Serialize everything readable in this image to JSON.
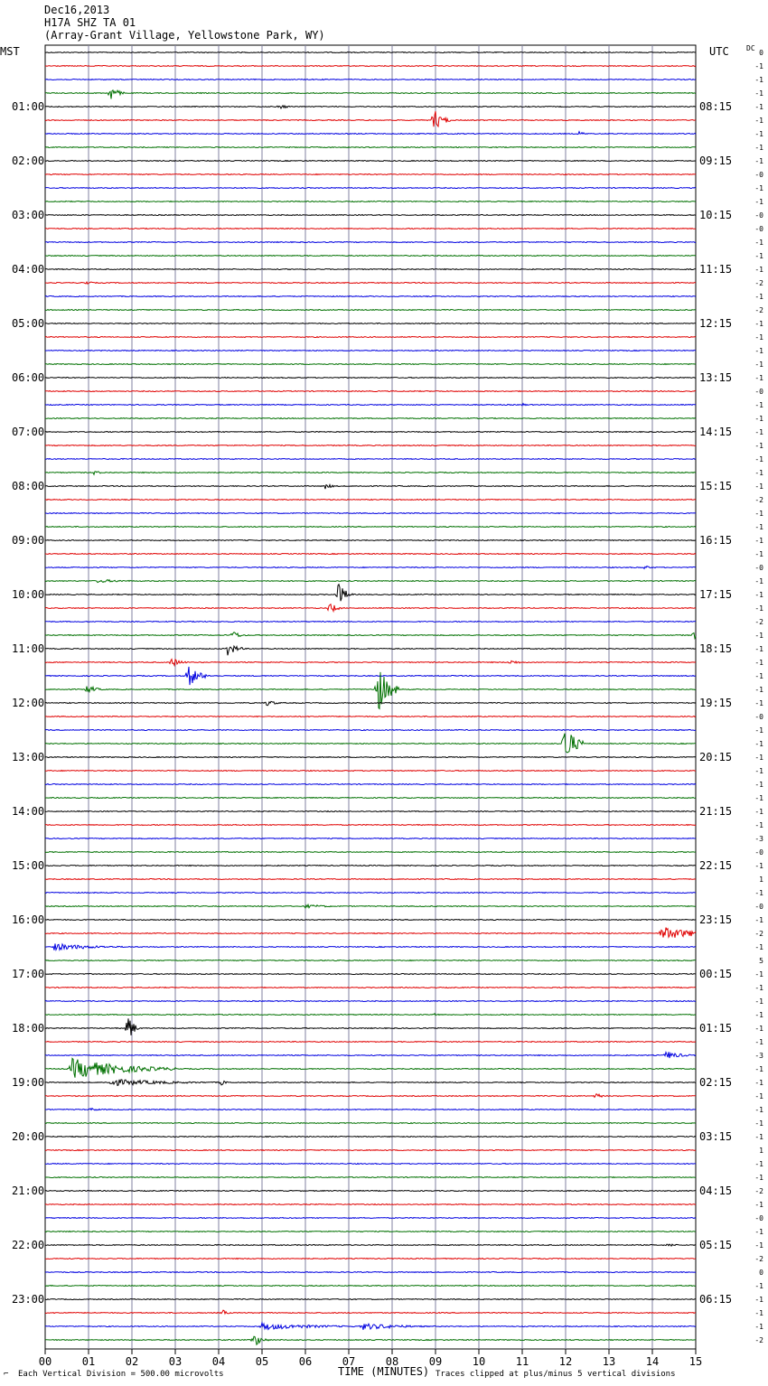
{
  "header": {
    "date": "Dec16,2013",
    "station": "H17A SHZ TA 01",
    "location": "(Array-Grant Village, Yellowstone Park, WY)"
  },
  "left_axis_label": "MST",
  "right_axis_label": "UTC",
  "dc_label": "DC",
  "footer": {
    "scale_mark": "⌐",
    "scale_note": "Each Vertical Division =  500.00 microvolts",
    "xlabel": "TIME (MINUTES)",
    "clip_note": "Traces clipped at plus/minus 5 vertical divisions"
  },
  "colors": {
    "trace_cycle": [
      "#000000",
      "#e00000",
      "#0000e0",
      "#007000"
    ],
    "grid": "#8080a0"
  },
  "chart_data": {
    "type": "line",
    "description_type": "helicorder",
    "x_range": [
      0,
      15
    ],
    "x_ticks": [
      "00",
      "01",
      "02",
      "03",
      "04",
      "05",
      "06",
      "07",
      "08",
      "09",
      "10",
      "11",
      "12",
      "13",
      "14",
      "15"
    ],
    "trace_minutes_each": 15,
    "num_traces": 96,
    "left_hour_labels": [
      "01:00",
      "02:00",
      "03:00",
      "04:00",
      "05:00",
      "06:00",
      "07:00",
      "08:00",
      "09:00",
      "10:00",
      "11:00",
      "12:00",
      "13:00",
      "14:00",
      "15:00",
      "16:00",
      "17:00",
      "18:00",
      "19:00",
      "20:00",
      "21:00",
      "22:00",
      "23:00"
    ],
    "right_hour_labels": [
      "08:15",
      "09:15",
      "10:15",
      "11:15",
      "12:15",
      "13:15",
      "14:15",
      "15:15",
      "16:15",
      "17:15",
      "18:15",
      "19:15",
      "20:15",
      "21:15",
      "22:15",
      "23:15",
      "00:15",
      "01:15",
      "02:15",
      "03:15",
      "04:15",
      "05:15",
      "06:15"
    ],
    "dc_offsets": [
      "0",
      "-1",
      "-1",
      "-1",
      "-1",
      "-1",
      "-1",
      "-1",
      "-1",
      "-0",
      "-1",
      "-1",
      "-0",
      "-0",
      "-1",
      "-1",
      "-1",
      "-2",
      "-1",
      "-2",
      "-1",
      "-1",
      "-1",
      "-1",
      "-1",
      "-0",
      "-1",
      "-1",
      "-1",
      "-1",
      "-1",
      "-1",
      "-1",
      "-2",
      "-1",
      "-1",
      "-1",
      "-1",
      "-0",
      "-1",
      "-1",
      "-1",
      "-2",
      "-1",
      "-1",
      "-1",
      "-1",
      "-1",
      "-1",
      "-0",
      "-1",
      "-1",
      "-1",
      "-1",
      "-1",
      "-1",
      "-1",
      "-1",
      "-3",
      "-0",
      "-1",
      "1",
      "-1",
      "-0",
      "-1",
      "-2",
      "-1",
      "5",
      "-1",
      "-1",
      "-1",
      "-1",
      "-1",
      "-1",
      "-3",
      "-1",
      "-1",
      "-1",
      "-1",
      "-1",
      "-1",
      "1",
      "-1",
      "-1",
      "-2",
      "-1",
      "-0",
      "-1",
      "-1",
      "-2",
      "0",
      "-1",
      "-1",
      "-1",
      "-1",
      "-2"
    ],
    "events": [
      {
        "trace": 3,
        "minute": 1.5,
        "amp": 9,
        "dur": 0.35
      },
      {
        "trace": 4,
        "minute": 5.4,
        "amp": 3,
        "dur": 0.4
      },
      {
        "trace": 5,
        "minute": 8.95,
        "amp": 14,
        "dur": 0.4
      },
      {
        "trace": 6,
        "minute": 12.3,
        "amp": 3,
        "dur": 0.3
      },
      {
        "trace": 17,
        "minute": 0.9,
        "amp": 3,
        "dur": 0.3
      },
      {
        "trace": 26,
        "minute": 11.0,
        "amp": 2,
        "dur": 0.2
      },
      {
        "trace": 31,
        "minute": 1.1,
        "amp": 3,
        "dur": 0.3
      },
      {
        "trace": 32,
        "minute": 6.45,
        "amp": 4,
        "dur": 0.3
      },
      {
        "trace": 38,
        "minute": 13.8,
        "amp": 2,
        "dur": 0.5
      },
      {
        "trace": 39,
        "minute": 1.2,
        "amp": 2,
        "dur": 1.5
      },
      {
        "trace": 40,
        "minute": 6.75,
        "amp": 14,
        "dur": 0.35
      },
      {
        "trace": 41,
        "minute": 6.55,
        "amp": 8,
        "dur": 0.3
      },
      {
        "trace": 43,
        "minute": 4.3,
        "amp": 6,
        "dur": 0.35
      },
      {
        "trace": 43,
        "minute": 14.95,
        "amp": 8,
        "dur": 0.1
      },
      {
        "trace": 44,
        "minute": 4.2,
        "amp": 9,
        "dur": 0.4
      },
      {
        "trace": 45,
        "minute": 2.9,
        "amp": 6,
        "dur": 0.4
      },
      {
        "trace": 45,
        "minute": 10.7,
        "amp": 3,
        "dur": 0.5
      },
      {
        "trace": 46,
        "minute": 3.3,
        "amp": 13,
        "dur": 0.5
      },
      {
        "trace": 47,
        "minute": 0.95,
        "amp": 6,
        "dur": 0.4
      },
      {
        "trace": 47,
        "minute": 7.65,
        "amp": 30,
        "dur": 0.5
      },
      {
        "trace": 48,
        "minute": 5.1,
        "amp": 4,
        "dur": 0.4
      },
      {
        "trace": 51,
        "minute": 11.95,
        "amp": 28,
        "dur": 0.45
      },
      {
        "trace": 63,
        "minute": 6.0,
        "amp": 2,
        "dur": 1.2
      },
      {
        "trace": 65,
        "minute": 14.2,
        "amp": 8,
        "dur": 1.6
      },
      {
        "trace": 66,
        "minute": 0.2,
        "amp": 4,
        "dur": 2.0
      },
      {
        "trace": 71,
        "minute": 8.95,
        "amp": 3,
        "dur": 0.2
      },
      {
        "trace": 72,
        "minute": 1.9,
        "amp": 20,
        "dur": 0.25
      },
      {
        "trace": 74,
        "minute": 14.3,
        "amp": 5,
        "dur": 0.7
      },
      {
        "trace": 75,
        "minute": 0.6,
        "amp": 12,
        "dur": 2.5
      },
      {
        "trace": 76,
        "minute": 1.5,
        "amp": 4,
        "dur": 2.7
      },
      {
        "trace": 76,
        "minute": 4.05,
        "amp": 4,
        "dur": 0.2
      },
      {
        "trace": 77,
        "minute": 12.7,
        "amp": 5,
        "dur": 0.2
      },
      {
        "trace": 78,
        "minute": 1.0,
        "amp": 2,
        "dur": 0.6
      },
      {
        "trace": 88,
        "minute": 14.35,
        "amp": 3,
        "dur": 0.3
      },
      {
        "trace": 93,
        "minute": 4.1,
        "amp": 4,
        "dur": 0.2
      },
      {
        "trace": 94,
        "minute": 5.0,
        "amp": 4,
        "dur": 2.5
      },
      {
        "trace": 94,
        "minute": 7.3,
        "amp": 4,
        "dur": 1.8
      },
      {
        "trace": 95,
        "minute": 4.8,
        "amp": 9,
        "dur": 0.35
      }
    ]
  }
}
